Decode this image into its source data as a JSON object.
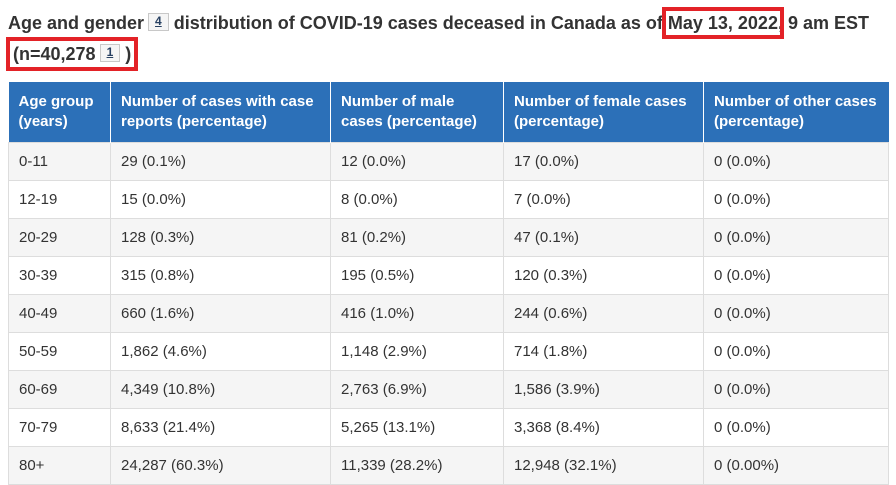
{
  "colors": {
    "header_blue": "#2c70b8",
    "annotation_red": "#e32227",
    "link_navy": "#284162",
    "zebra_gray": "#f5f5f5",
    "border_gray": "#dddddd",
    "text_dark": "#333333"
  },
  "title": {
    "part1": "Age and gender",
    "footnote4_label": "4",
    "part2": "distribution of COVID-19 cases deceased in Canada as of",
    "date_highlight": "May 13, 2022",
    "part3": ", 9 am EST",
    "n_open": "(n=40,278",
    "footnote1_label": "1",
    "n_close": ")"
  },
  "table": {
    "columns": [
      "Age group (years)",
      "Number of cases with case reports (percentage)",
      "Number of male cases (percentage)",
      "Number of female cases (percentage)",
      "Number of other cases (percentage)"
    ],
    "rows": [
      [
        "0-11",
        "29 (0.1%)",
        "12 (0.0%)",
        "17 (0.0%)",
        "0 (0.0%)"
      ],
      [
        "12-19",
        "15 (0.0%)",
        "8 (0.0%)",
        "7 (0.0%)",
        "0 (0.0%)"
      ],
      [
        "20-29",
        "128 (0.3%)",
        "81 (0.2%)",
        "47 (0.1%)",
        "0 (0.0%)"
      ],
      [
        "30-39",
        "315 (0.8%)",
        "195 (0.5%)",
        "120 (0.3%)",
        "0 (0.0%)"
      ],
      [
        "40-49",
        "660 (1.6%)",
        "416 (1.0%)",
        "244 (0.6%)",
        "0 (0.0%)"
      ],
      [
        "50-59",
        "1,862 (4.6%)",
        "1,148 (2.9%)",
        "714 (1.8%)",
        "0 (0.0%)"
      ],
      [
        "60-69",
        "4,349 (10.8%)",
        "2,763 (6.9%)",
        "1,586 (3.9%)",
        "0 (0.0%)"
      ],
      [
        "70-79",
        "8,633 (21.4%)",
        "5,265 (13.1%)",
        "3,368 (8.4%)",
        "0 (0.0%)"
      ],
      [
        "80+",
        "24,287 (60.3%)",
        "11,339 (28.2%)",
        "12,948 (32.1%)",
        "0 (0.00%)"
      ]
    ]
  }
}
